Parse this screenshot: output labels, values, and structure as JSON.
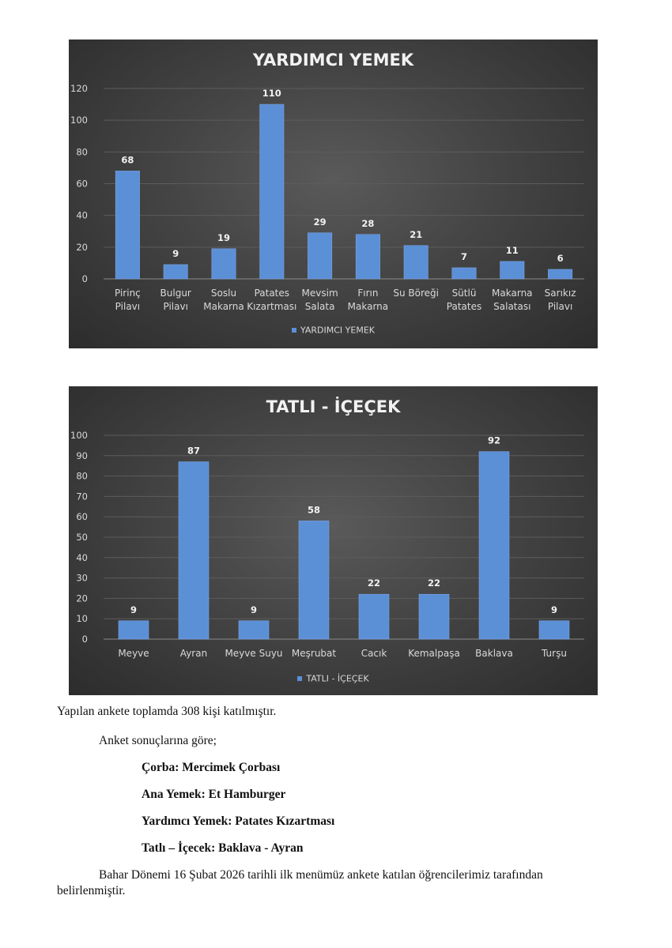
{
  "colors": {
    "bar": "#5b8fd6",
    "bar_top": "#7aa6e4",
    "grid": "#5c5c5c",
    "text": "#d9d9d9",
    "label": "#f2f2f2"
  },
  "chart_data": [
    {
      "type": "bar",
      "title": "YARDIMCI YEMEK",
      "categories": [
        [
          "Pirinç",
          "Pilavı"
        ],
        [
          "Bulgur",
          "Pilavı"
        ],
        [
          "Soslu",
          "Makarna"
        ],
        [
          "Patates",
          "Kızartması"
        ],
        [
          "Mevsim",
          "Salata"
        ],
        [
          "Fırın",
          "Makarna"
        ],
        [
          "Su Böreği"
        ],
        [
          "Sütlü",
          "Patates"
        ],
        [
          "Makarna",
          "Salatası"
        ],
        [
          "Sarıkız",
          "Pilavı"
        ]
      ],
      "series": [
        {
          "name": "YARDIMCI YEMEK",
          "values": [
            68,
            9,
            19,
            110,
            29,
            28,
            21,
            7,
            11,
            6
          ]
        }
      ],
      "yticks": [
        0,
        20,
        40,
        60,
        80,
        100,
        120
      ],
      "ylim": [
        0,
        120
      ],
      "legend": "bottom",
      "grid": true
    },
    {
      "type": "bar",
      "title": "TATLI - İÇEÇEK",
      "categories": [
        [
          "Meyve"
        ],
        [
          "Ayran"
        ],
        [
          "Meyve Suyu"
        ],
        [
          "Meşrubat"
        ],
        [
          "Cacık"
        ],
        [
          "Kemalpaşa"
        ],
        [
          "Baklava"
        ],
        [
          "Turşu"
        ]
      ],
      "series": [
        {
          "name": "TATLI - İÇEÇEK",
          "values": [
            9,
            87,
            9,
            58,
            22,
            22,
            92,
            9
          ]
        }
      ],
      "yticks": [
        0,
        10,
        20,
        30,
        40,
        50,
        60,
        70,
        80,
        90,
        100
      ],
      "ylim": [
        0,
        100
      ],
      "legend": "bottom",
      "grid": true
    }
  ],
  "text": {
    "line1": "Yapılan ankete toplamda 308 kişi katılmıştır.",
    "line2": "Anket sonuçlarına göre;",
    "corba": "Çorba: Mercimek Çorbası",
    "ana": "Ana Yemek: Et Hamburger",
    "yardimci": "Yardımcı Yemek: Patates Kızartması",
    "tatli": "Tatlı – İçecek: Baklava - Ayran",
    "para_a": "Bahar Dönemi 16 Şubat 2026 tarihli ilk menümüz ankete katılan öğrencilerimiz tarafından",
    "para_b": "belirlenmiştir."
  }
}
